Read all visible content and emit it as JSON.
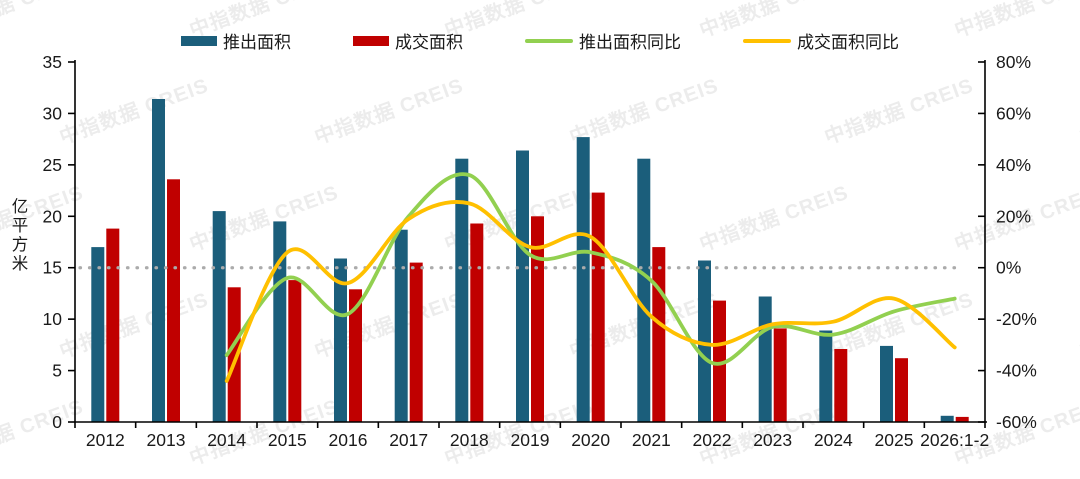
{
  "watermark": {
    "text": "中指数据 CREIS"
  },
  "legend": [
    {
      "label": "推出面积",
      "type": "bar",
      "color": "#1B5E7B"
    },
    {
      "label": "成交面积",
      "type": "bar",
      "color": "#C00000"
    },
    {
      "label": "推出面积同比",
      "type": "line",
      "color": "#92D050"
    },
    {
      "label": "成交面积同比",
      "type": "line",
      "color": "#FFC000"
    }
  ],
  "chart_data": {
    "type": "bar+line",
    "title": "",
    "categories": [
      "2012",
      "2013",
      "2014",
      "2015",
      "2016",
      "2017",
      "2018",
      "2019",
      "2020",
      "2021",
      "2022",
      "2023",
      "2024",
      "2025",
      "2026:1-2"
    ],
    "series": [
      {
        "name": "推出面积",
        "type": "bar",
        "axis": "left",
        "color": "#1B5E7B",
        "values": [
          17.0,
          31.4,
          20.5,
          19.5,
          15.9,
          18.7,
          25.6,
          26.4,
          27.7,
          25.6,
          15.7,
          12.2,
          8.9,
          7.4,
          0.6
        ]
      },
      {
        "name": "成交面积",
        "type": "bar",
        "axis": "left",
        "color": "#C00000",
        "values": [
          18.8,
          23.6,
          13.1,
          13.8,
          12.9,
          15.5,
          19.3,
          20.0,
          22.3,
          17.0,
          11.8,
          9.1,
          7.1,
          6.2,
          0.5
        ]
      },
      {
        "name": "推出面积同比",
        "type": "line",
        "axis": "right",
        "color": "#92D050",
        "values": [
          null,
          null,
          -34,
          -4,
          -18,
          20,
          36,
          5,
          6,
          -5,
          -37,
          -23,
          -26,
          -17,
          -12
        ]
      },
      {
        "name": "成交面积同比",
        "type": "line",
        "axis": "right",
        "color": "#FFC000",
        "values": [
          null,
          null,
          -44,
          6,
          -6,
          19,
          25,
          8,
          12,
          -19,
          -30,
          -22,
          -21,
          -12,
          -31
        ]
      }
    ],
    "left_axis": {
      "label": "亿平方米",
      "min": 0,
      "max": 35,
      "step": 5,
      "tick_labels": [
        "0",
        "5",
        "10",
        "15",
        "20",
        "25",
        "30",
        "35"
      ]
    },
    "right_axis": {
      "min": -60,
      "max": 80,
      "step": 20,
      "tick_labels": [
        "-60%",
        "-40%",
        "-20%",
        "0%",
        "20%",
        "40%",
        "60%",
        "80%"
      ]
    },
    "zero_gridline": {
      "value_left": 15,
      "style": "dotted",
      "color": "#ABABAB"
    },
    "grid": "off",
    "legend_position": "top",
    "text_color": "#1a1a1a"
  }
}
